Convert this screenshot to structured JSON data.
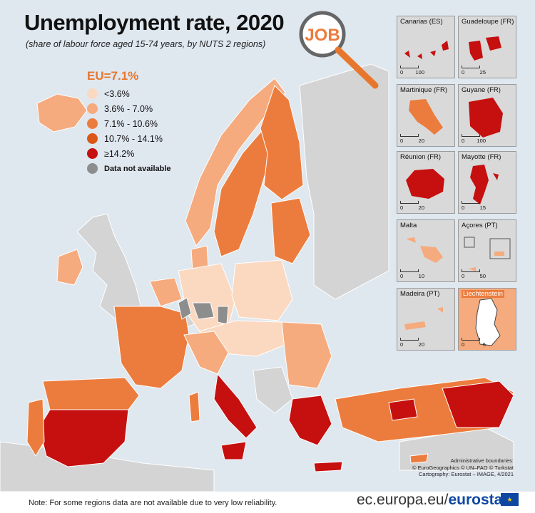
{
  "title": "Unemployment rate, 2020",
  "subtitle": "(share of labour force aged 15-74 years, by NUTS 2 regions)",
  "badge": "JOB",
  "legend": {
    "title": "EU=7.1%",
    "items": [
      {
        "label": "<3.6%",
        "color": "#fbd9c1"
      },
      {
        "label": "3.6% - 7.0%",
        "color": "#f5ab7e"
      },
      {
        "label": "7.1% - 10.6%",
        "color": "#ec7c3d"
      },
      {
        "label": "10.7% - 14.1%",
        "color": "#dc5817"
      },
      {
        "label": "≥14.2%",
        "color": "#c60f0f"
      },
      {
        "label": "Data not available",
        "color": "#8d8d8d"
      }
    ]
  },
  "insets": [
    {
      "name": "Canarias (ES)",
      "scale": [
        "0",
        "100"
      ]
    },
    {
      "name": "Guadeloupe (FR)",
      "scale": [
        "0",
        "25"
      ]
    },
    {
      "name": "Martinique (FR)",
      "scale": [
        "0",
        "20"
      ]
    },
    {
      "name": "Guyane (FR)",
      "scale": [
        "0",
        "100"
      ]
    },
    {
      "name": "Réunion (FR)",
      "scale": [
        "0",
        "20"
      ]
    },
    {
      "name": "Mayotte (FR)",
      "scale": [
        "0",
        "15"
      ]
    },
    {
      "name": "Malta",
      "scale": [
        "0",
        "10"
      ]
    },
    {
      "name": "Açores (PT)",
      "scale": [
        "0",
        "50"
      ]
    },
    {
      "name": "Madeira (PT)",
      "scale": [
        "0",
        "20"
      ]
    },
    {
      "name": "Liechtenstein",
      "scale": [
        "0",
        "5"
      ]
    }
  ],
  "credits": {
    "line1": "Administrative boundaries:",
    "line2": "© EuroGeographics © UN–FAO © Turkstat",
    "line3": "Cartography: Eurostat – IMAGE, 4/2021"
  },
  "footer": {
    "note": "Note: For some regions data are not available due to very low reliability.",
    "url": "ec.europa.eu/",
    "brand": "eurostat"
  }
}
